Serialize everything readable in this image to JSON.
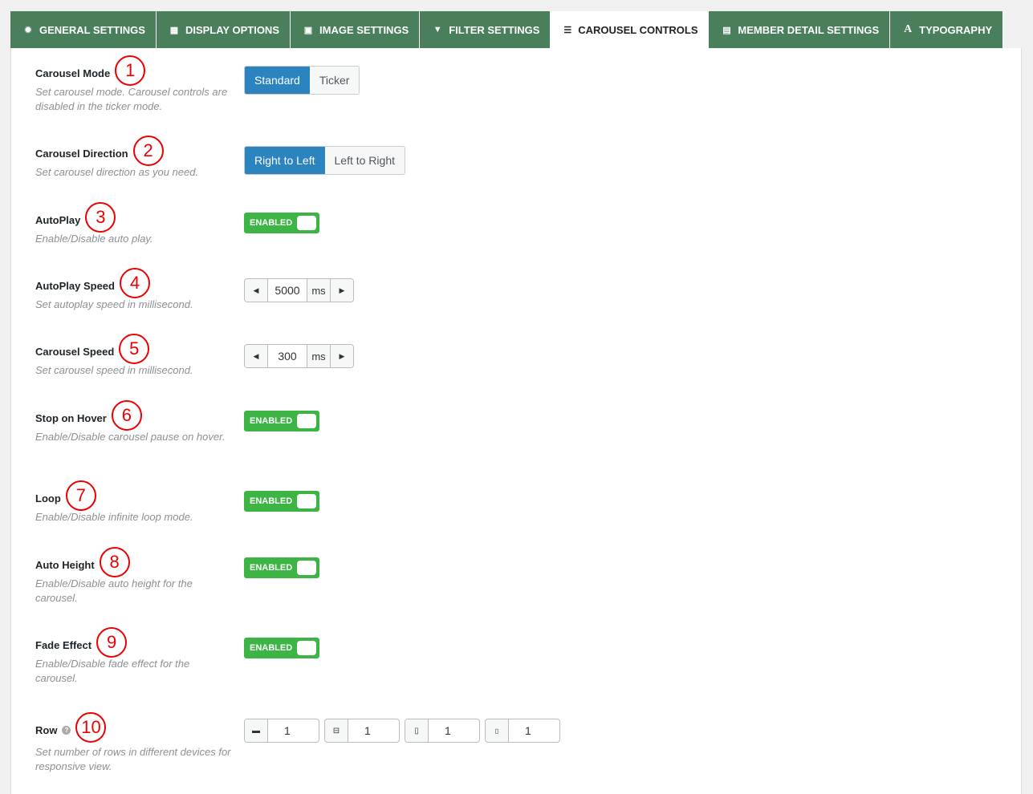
{
  "tabs": [
    {
      "label": "GENERAL SETTINGS",
      "icon": "gear-icon",
      "glyph": "✹"
    },
    {
      "label": "DISPLAY OPTIONS",
      "icon": "grid-icon",
      "glyph": "▦"
    },
    {
      "label": "IMAGE SETTINGS",
      "icon": "image-icon",
      "glyph": "▣"
    },
    {
      "label": "FILTER SETTINGS",
      "icon": "filter-icon",
      "glyph": "▼"
    },
    {
      "label": "CAROUSEL CONTROLS",
      "icon": "sliders-icon",
      "glyph": "☰",
      "active": true
    },
    {
      "label": "MEMBER DETAIL SETTINGS",
      "icon": "id-card-icon",
      "glyph": "▤"
    },
    {
      "label": "TYPOGRAPHY",
      "icon": "font-icon",
      "glyph": "A"
    }
  ],
  "accent": "#4a7f5c",
  "settings": {
    "mode": {
      "label": "Carousel Mode",
      "num": "1",
      "desc": "Set carousel mode. Carousel controls are disabled in the ticker mode.",
      "options": [
        "Standard",
        "Ticker"
      ],
      "selected": "Standard"
    },
    "direction": {
      "label": "Carousel Direction",
      "num": "2",
      "desc": "Set carousel direction as you need.",
      "options": [
        "Right to Left",
        "Left to Right"
      ],
      "selected": "Right to Left"
    },
    "autoplay": {
      "label": "AutoPlay",
      "num": "3",
      "desc": "Enable/Disable auto play.",
      "state": "ENABLED"
    },
    "autoplay_speed": {
      "label": "AutoPlay Speed",
      "num": "4",
      "desc": "Set autoplay speed in millisecond.",
      "value": "5000",
      "unit": "ms"
    },
    "carousel_speed": {
      "label": "Carousel Speed",
      "num": "5",
      "desc": "Set carousel speed in millisecond.",
      "value": "300",
      "unit": "ms"
    },
    "stop_hover": {
      "label": "Stop on Hover",
      "num": "6",
      "desc": "Enable/Disable carousel pause on hover.",
      "state": "ENABLED"
    },
    "loop": {
      "label": "Loop",
      "num": "7",
      "desc": "Enable/Disable infinite loop mode.",
      "state": "ENABLED"
    },
    "auto_height": {
      "label": "Auto Height",
      "num": "8",
      "desc": "Enable/Disable auto height for the carousel.",
      "state": "ENABLED"
    },
    "fade": {
      "label": "Fade Effect",
      "num": "9",
      "desc": "Enable/Disable fade effect for the carousel.",
      "state": "ENABLED"
    },
    "row": {
      "label": "Row",
      "num": "10",
      "desc": "Set number of rows in different devices for responsive view.",
      "devices": [
        {
          "icon": "desktop-icon",
          "glyph": "▬",
          "value": "1"
        },
        {
          "icon": "laptop-icon",
          "glyph": "⊟",
          "value": "1"
        },
        {
          "icon": "tablet-icon",
          "glyph": "▯",
          "value": "1"
        },
        {
          "icon": "mobile-icon",
          "glyph": "▯",
          "value": "1"
        }
      ]
    }
  }
}
